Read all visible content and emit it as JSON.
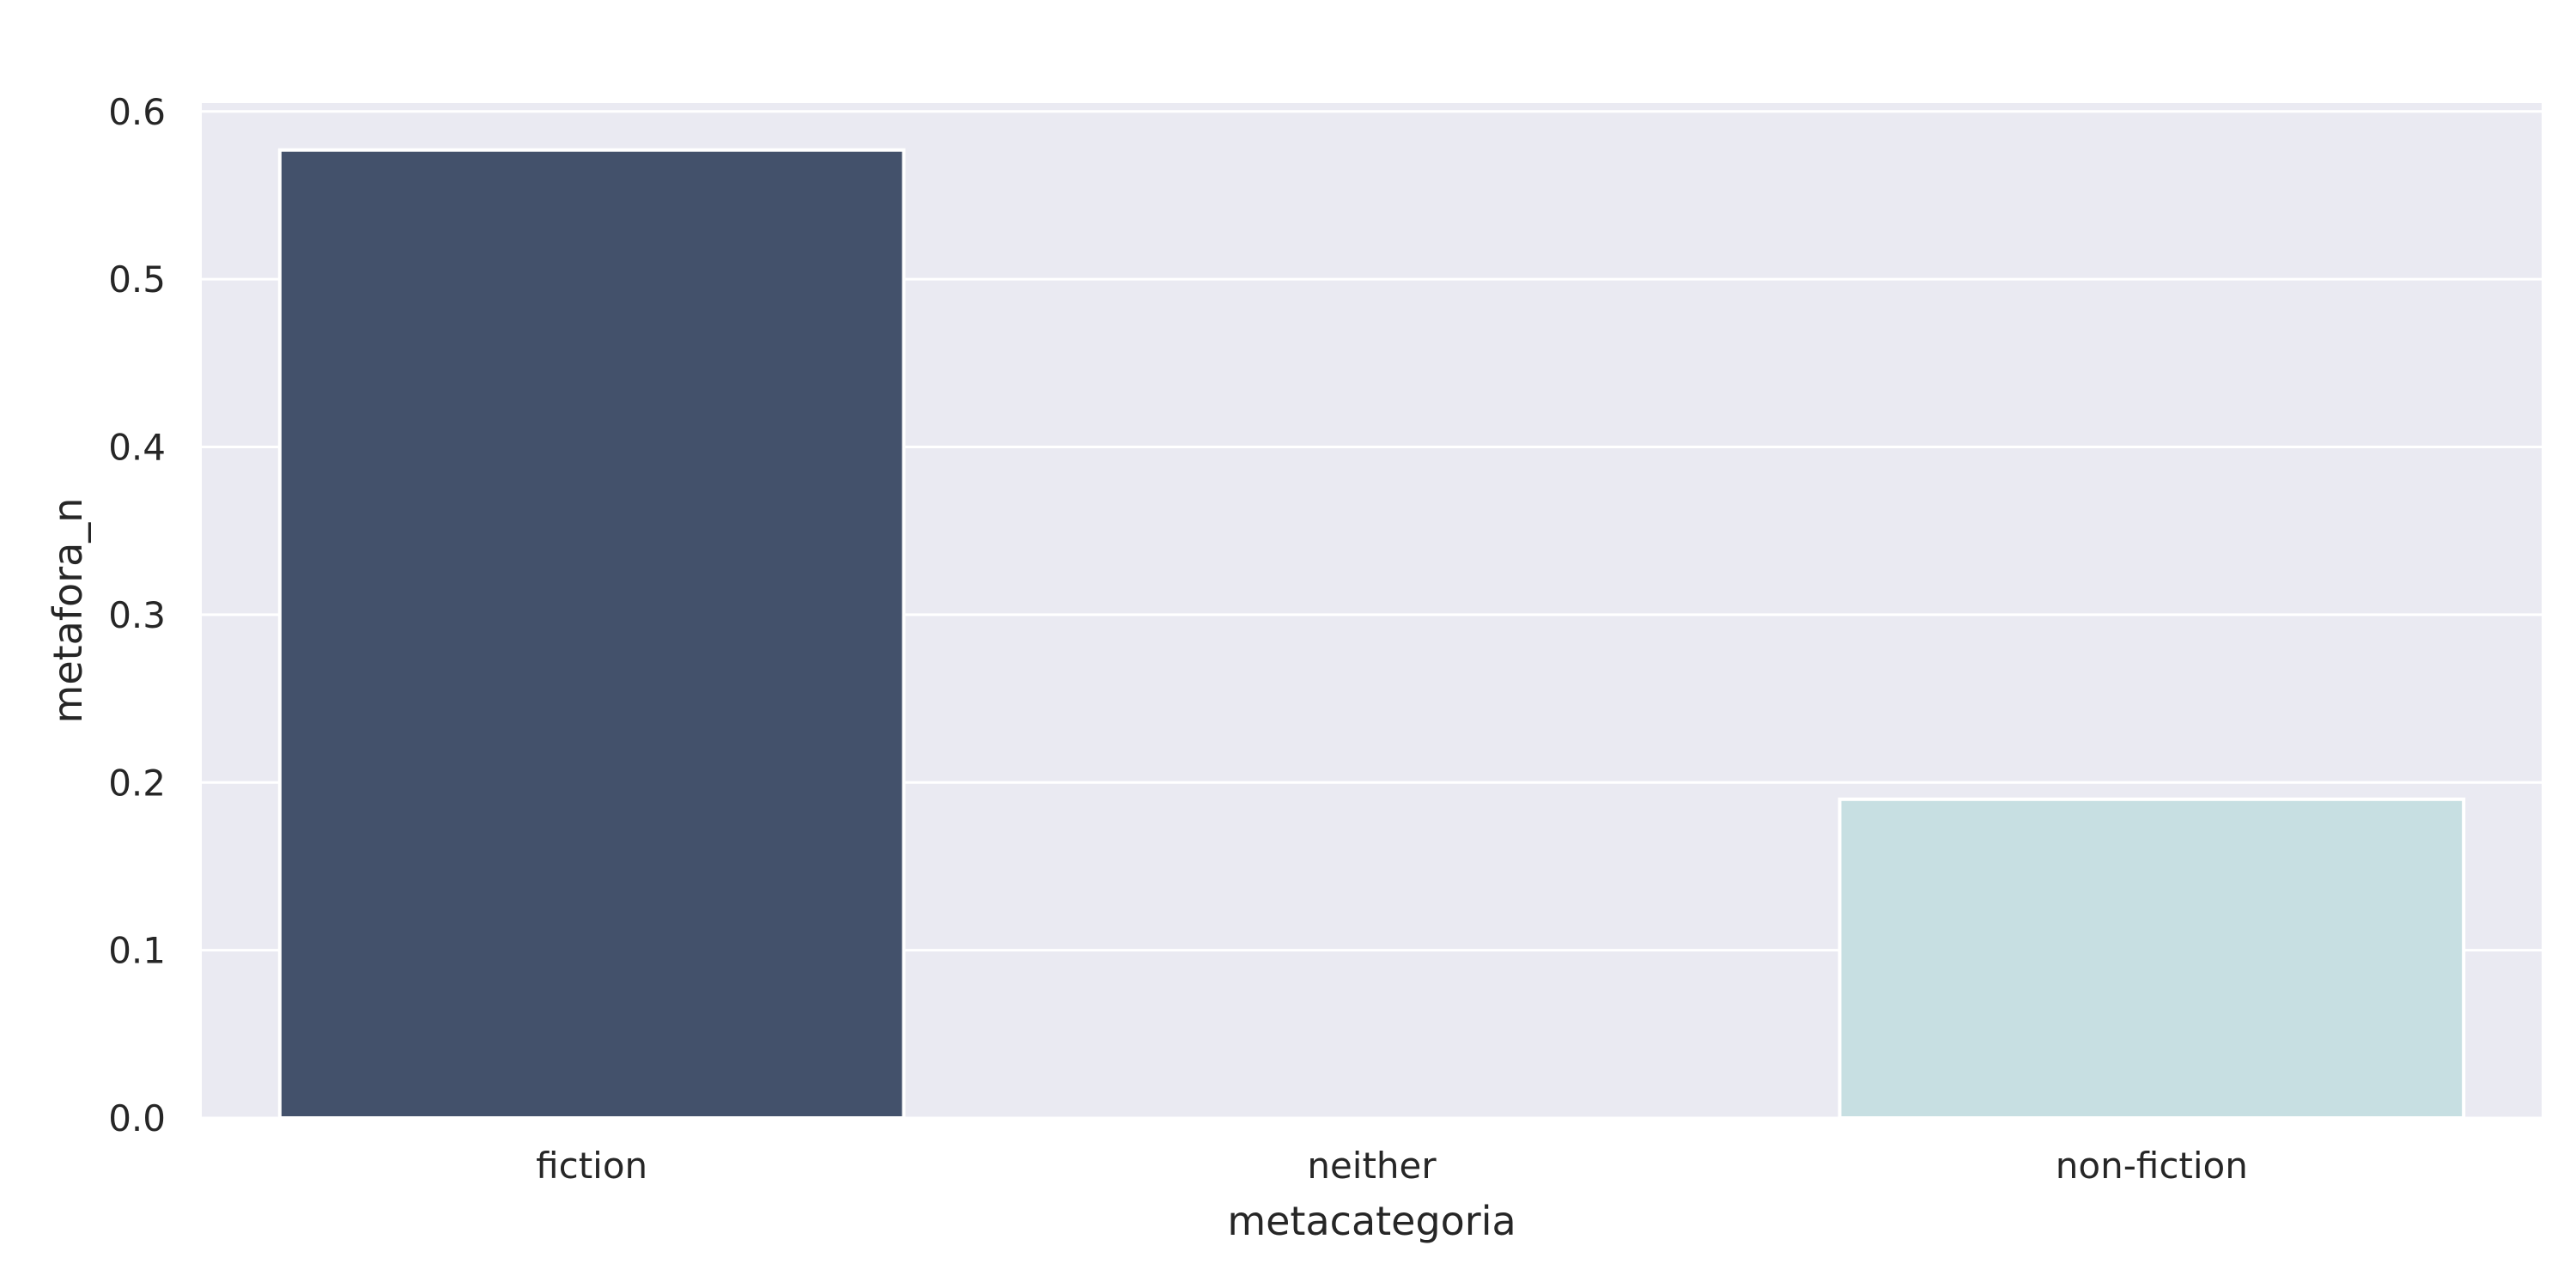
{
  "chart_data": {
    "type": "bar",
    "categories": [
      "fiction",
      "neither",
      "non-fiction"
    ],
    "values": [
      0.577,
      0.0,
      0.19
    ],
    "colors": [
      "#43516b",
      "#dfe8ea",
      "#c7dfe2"
    ],
    "xlabel": "metacategoria",
    "ylabel": "metafora_n",
    "ylim": [
      0,
      0.605
    ],
    "yticks": [
      0.0,
      0.1,
      0.2,
      0.3,
      0.4,
      0.5,
      0.6
    ],
    "ytick_labels": [
      "0.0",
      "0.1",
      "0.2",
      "0.3",
      "0.4",
      "0.5",
      "0.6"
    ],
    "grid": true,
    "background": "#eaeaf2",
    "grid_color": "#ffffff",
    "bar_edge_color": "#ffffff"
  }
}
